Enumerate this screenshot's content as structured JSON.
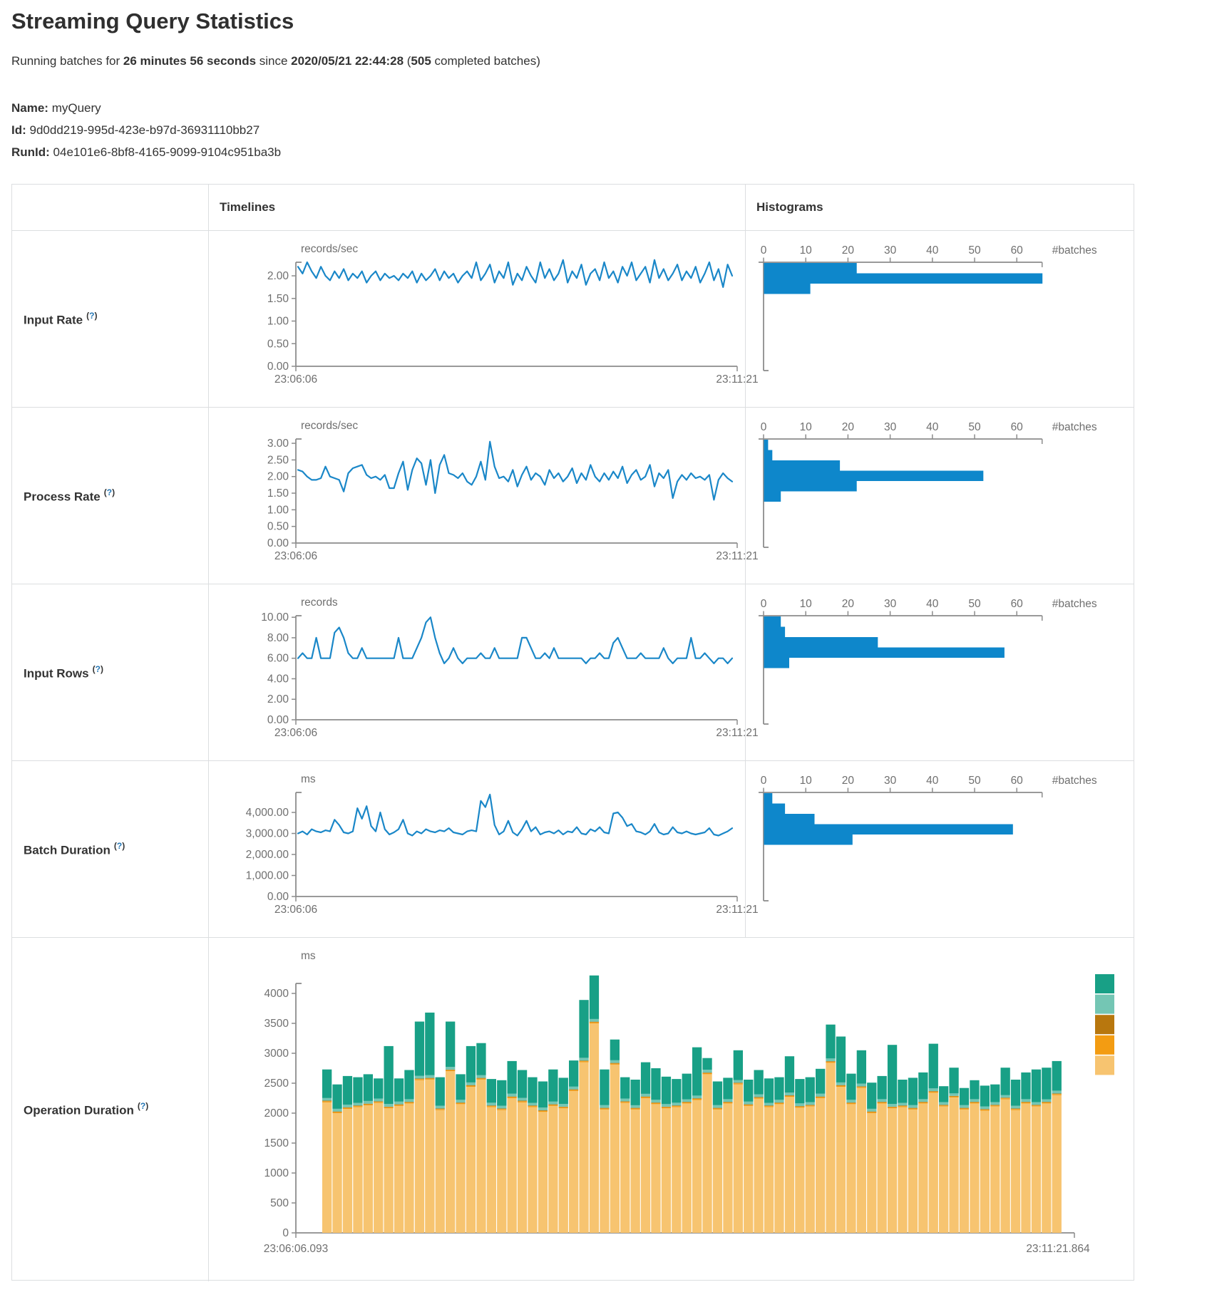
{
  "page": {
    "title": "Streaming Query Statistics"
  },
  "summary_segments": [
    {
      "text": "Running batches for ",
      "bold": false
    },
    {
      "text": "26 minutes 56 seconds",
      "bold": true
    },
    {
      "text": " since ",
      "bold": false
    },
    {
      "text": "2020/05/21 22:44:28",
      "bold": true
    },
    {
      "text": " (",
      "bold": false
    },
    {
      "text": "505",
      "bold": true
    },
    {
      "text": " completed batches)",
      "bold": false
    }
  ],
  "meta": [
    {
      "label": "Name:",
      "value": "myQuery"
    },
    {
      "label": "Id:",
      "value": "9d0dd219-995d-423e-b97d-36931110bb27"
    },
    {
      "label": "RunId:",
      "value": "04e101e6-8bf8-4165-9099-9104c951ba3b"
    }
  ],
  "table": {
    "col_headers": {
      "timelines": "Timelines",
      "histograms": "Histograms"
    },
    "help": {
      "open": "(",
      "mark": "?",
      "close": ")"
    },
    "rows": [
      {
        "label": "Input Rate",
        "timeline": "input-rate-timeline",
        "histogram": "input-rate-histogram"
      },
      {
        "label": "Process Rate",
        "timeline": "process-rate-timeline",
        "histogram": "process-rate-histogram"
      },
      {
        "label": "Input Rows",
        "timeline": "input-rows-timeline",
        "histogram": "input-rows-histogram"
      },
      {
        "label": "Batch Duration",
        "timeline": "batch-duration-timeline",
        "histogram": "batch-duration-histogram"
      }
    ],
    "operation_row": {
      "label": "Operation Duration",
      "chart": "operation-duration-stacked"
    }
  },
  "colors": {
    "line": "#1a87c8",
    "hist_bar": "#0e87cb",
    "axis": "#8c8c8c",
    "tick_text": "#6f6f6f",
    "border": "#dcdee0",
    "help": "#2577b5"
  },
  "chart_data": [
    {
      "id": "input-rate-timeline",
      "type": "line",
      "title": "Input Rate",
      "ylabel": "records/sec",
      "x_start": "23:06:06",
      "x_end": "23:11:21",
      "ylim": [
        0,
        2.3
      ],
      "y_ticks": [
        {
          "v": 2,
          "t": "2.00"
        },
        {
          "v": 1.5,
          "t": "1.50"
        },
        {
          "v": 1,
          "t": "1.00"
        },
        {
          "v": 0.5,
          "t": "0.50"
        },
        {
          "v": 0,
          "t": "0.00"
        }
      ],
      "values": [
        2.2,
        2.05,
        2.3,
        2.1,
        1.95,
        2.2,
        2.0,
        1.9,
        2.1,
        1.95,
        2.15,
        1.9,
        2.05,
        1.95,
        2.1,
        1.85,
        2.0,
        2.1,
        1.9,
        2.05,
        1.95,
        2.0,
        1.9,
        2.05,
        1.95,
        2.1,
        1.85,
        2.05,
        1.9,
        2.0,
        2.15,
        1.9,
        2.1,
        1.95,
        2.05,
        1.85,
        2.0,
        2.1,
        1.95,
        2.3,
        1.9,
        2.05,
        2.25,
        1.85,
        2.1,
        1.95,
        2.3,
        1.8,
        2.05,
        1.9,
        2.2,
        2.0,
        1.85,
        2.3,
        1.95,
        2.15,
        1.9,
        2.05,
        2.35,
        1.85,
        2.1,
        1.95,
        2.25,
        1.8,
        2.05,
        2.15,
        1.9,
        2.3,
        1.95,
        2.1,
        1.85,
        2.2,
        2.0,
        2.3,
        1.9,
        2.05,
        2.2,
        1.85,
        2.35,
        1.95,
        2.15,
        1.9,
        2.05,
        2.25,
        1.9,
        2.1,
        1.95,
        2.2,
        1.85,
        2.05,
        2.3,
        1.9,
        2.15,
        1.75,
        2.25,
        2.0
      ]
    },
    {
      "id": "input-rate-histogram",
      "type": "bar",
      "orientation": "horizontal",
      "xlabel": "#batches",
      "xlim": [
        0,
        66
      ],
      "x_ticks": [
        0,
        10,
        20,
        30,
        40,
        50,
        60
      ],
      "bin_counts": [
        22,
        66,
        11
      ]
    },
    {
      "id": "process-rate-timeline",
      "type": "line",
      "title": "Process Rate",
      "ylabel": "records/sec",
      "x_start": "23:06:06",
      "x_end": "23:11:21",
      "ylim": [
        0,
        3.13
      ],
      "y_ticks": [
        {
          "v": 3,
          "t": "3.00"
        },
        {
          "v": 2.5,
          "t": "2.50"
        },
        {
          "v": 2,
          "t": "2.00"
        },
        {
          "v": 1.5,
          "t": "1.50"
        },
        {
          "v": 1,
          "t": "1.00"
        },
        {
          "v": 0.5,
          "t": "0.50"
        },
        {
          "v": 0,
          "t": "0.00"
        }
      ],
      "values": [
        2.2,
        2.15,
        2.0,
        1.9,
        1.9,
        1.95,
        2.3,
        2.0,
        1.95,
        1.9,
        1.55,
        2.1,
        2.25,
        2.3,
        2.35,
        2.05,
        1.95,
        2.0,
        1.9,
        2.05,
        1.65,
        1.65,
        2.1,
        2.45,
        1.6,
        2.2,
        2.55,
        2.4,
        1.75,
        2.5,
        1.5,
        2.35,
        2.65,
        2.1,
        2.05,
        1.95,
        2.1,
        1.85,
        1.75,
        2.0,
        2.45,
        1.9,
        3.05,
        2.3,
        1.95,
        2.0,
        1.85,
        2.2,
        1.7,
        2.05,
        2.3,
        1.9,
        2.1,
        2.0,
        1.75,
        2.2,
        1.95,
        2.1,
        1.85,
        2.0,
        2.25,
        1.8,
        2.1,
        1.9,
        2.35,
        2.0,
        1.85,
        2.1,
        1.9,
        2.15,
        1.95,
        2.3,
        1.8,
        2.05,
        2.2,
        1.9,
        2.0,
        2.35,
        1.7,
        2.1,
        1.95,
        2.2,
        1.35,
        1.85,
        2.05,
        1.9,
        2.1,
        1.95,
        2.0,
        1.9,
        2.05,
        1.3,
        1.9,
        2.1,
        1.95,
        1.85
      ]
    },
    {
      "id": "process-rate-histogram",
      "type": "bar",
      "orientation": "horizontal",
      "xlabel": "#batches",
      "xlim": [
        0,
        66
      ],
      "x_ticks": [
        0,
        10,
        20,
        30,
        40,
        50,
        60
      ],
      "bin_counts": [
        1,
        2,
        18,
        52,
        22,
        4
      ]
    },
    {
      "id": "input-rows-timeline",
      "type": "line",
      "title": "Input Rows",
      "ylabel": "records",
      "x_start": "23:06:06",
      "x_end": "23:11:21",
      "ylim": [
        0,
        10.15
      ],
      "y_ticks": [
        {
          "v": 10,
          "t": "10.00"
        },
        {
          "v": 8,
          "t": "8.00"
        },
        {
          "v": 6,
          "t": "6.00"
        },
        {
          "v": 4,
          "t": "4.00"
        },
        {
          "v": 2,
          "t": "2.00"
        },
        {
          "v": 0,
          "t": "0.00"
        }
      ],
      "values": [
        6,
        6.5,
        6,
        6,
        8,
        6,
        6,
        6,
        8.5,
        9,
        8,
        6.5,
        6,
        6,
        7,
        6,
        6,
        6,
        6,
        6,
        6,
        6,
        8,
        6,
        6,
        6,
        7,
        8,
        9.5,
        10,
        8,
        6.5,
        5.5,
        6,
        7,
        6,
        5.5,
        6,
        6,
        6,
        6.5,
        6,
        6,
        7,
        6,
        6,
        6,
        6,
        6,
        8,
        8,
        7,
        6,
        6,
        6.5,
        6,
        7,
        6,
        6,
        6,
        6,
        6,
        6,
        5.5,
        6,
        6,
        6.5,
        6,
        6,
        7.5,
        8,
        7,
        6,
        6,
        6,
        6.5,
        6,
        6,
        6,
        6,
        7,
        6,
        5.5,
        6,
        6,
        6,
        8,
        6,
        6,
        6.5,
        6,
        5.5,
        6,
        6,
        5.5,
        6
      ]
    },
    {
      "id": "input-rows-histogram",
      "type": "bar",
      "orientation": "horizontal",
      "xlabel": "#batches",
      "xlim": [
        0,
        66
      ],
      "x_ticks": [
        0,
        10,
        20,
        30,
        40,
        50,
        60
      ],
      "bin_counts": [
        4,
        5,
        27,
        57,
        6
      ]
    },
    {
      "id": "batch-duration-timeline",
      "type": "line",
      "title": "Batch Duration",
      "ylabel": "ms",
      "x_start": "23:06:06",
      "x_end": "23:11:21",
      "ylim": [
        0,
        4950
      ],
      "y_ticks": [
        {
          "v": 4000,
          "t": "4,000.00"
        },
        {
          "v": 3000,
          "t": "3,000.00"
        },
        {
          "v": 2000,
          "t": "2,000.00"
        },
        {
          "v": 1000,
          "t": "1,000.00"
        },
        {
          "v": 0,
          "t": "0.00"
        }
      ],
      "values": [
        3000,
        3100,
        2950,
        3200,
        3100,
        3050,
        3150,
        3100,
        3650,
        3400,
        3050,
        3000,
        3100,
        4200,
        3700,
        4300,
        3350,
        3100,
        4000,
        3200,
        2950,
        3050,
        3200,
        3650,
        3000,
        2900,
        3100,
        3000,
        3200,
        3100,
        3050,
        3150,
        3100,
        3250,
        3050,
        3000,
        2950,
        3100,
        3150,
        3100,
        4550,
        4250,
        4850,
        3400,
        2950,
        3100,
        3600,
        3050,
        2900,
        3200,
        3600,
        3100,
        3300,
        2950,
        3050,
        3100,
        3000,
        3150,
        2950,
        3100,
        3050,
        3300,
        3000,
        2950,
        3200,
        3100,
        3300,
        3050,
        3000,
        3950,
        4000,
        3750,
        3350,
        3450,
        3100,
        3050,
        2950,
        3100,
        3450,
        3050,
        2950,
        3000,
        3300,
        3050,
        3000,
        3100,
        3000,
        2950,
        3000,
        3050,
        3250,
        2950,
        2900,
        3000,
        3100,
        3250
      ]
    },
    {
      "id": "batch-duration-histogram",
      "type": "bar",
      "orientation": "horizontal",
      "xlabel": "#batches",
      "xlim": [
        0,
        66
      ],
      "x_ticks": [
        0,
        10,
        20,
        30,
        40,
        50,
        60
      ],
      "bin_counts": [
        2,
        5,
        12,
        59,
        21
      ]
    },
    {
      "id": "operation-duration-stacked",
      "type": "bar",
      "stacked": true,
      "title": "Operation Duration",
      "ylabel": "ms",
      "x_start": "23:06:06.093",
      "x_end": "23:11:21.864",
      "ylim": [
        0,
        4170
      ],
      "y_ticks": [
        {
          "v": 4000,
          "t": "4000"
        },
        {
          "v": 3500,
          "t": "3500"
        },
        {
          "v": 3000,
          "t": "3000"
        },
        {
          "v": 2500,
          "t": "2500"
        },
        {
          "v": 2000,
          "t": "2000"
        },
        {
          "v": 1500,
          "t": "1500"
        },
        {
          "v": 1000,
          "t": "1000"
        },
        {
          "v": 500,
          "t": "500"
        },
        {
          "v": 0,
          "t": "0"
        }
      ],
      "series": [
        {
          "name": "light-orange",
          "color": "#f7c470",
          "values": [
            2180,
            2000,
            2070,
            2100,
            2130,
            2170,
            2080,
            2120,
            2160,
            2550,
            2560,
            2050,
            2700,
            2150,
            2440,
            2560,
            2100,
            2050,
            2250,
            2180,
            2100,
            2020,
            2120,
            2080,
            2370,
            2850,
            3500,
            2060,
            2810,
            2170,
            2060,
            2250,
            2150,
            2080,
            2100,
            2160,
            2220,
            2650,
            2060,
            2160,
            2480,
            2120,
            2240,
            2100,
            2150,
            2270,
            2090,
            2110,
            2250,
            2840,
            2440,
            2150,
            2420,
            2000,
            2160,
            2080,
            2100,
            2060,
            2160,
            2340,
            2110,
            2260,
            2060,
            2160,
            2040,
            2110,
            2230,
            2050,
            2160,
            2110,
            2160,
            2300
          ]
        },
        {
          "name": "orange",
          "color": "#f39c12",
          "values": 18
        },
        {
          "name": "dark-ochre",
          "color": "#b8770e",
          "values": 10
        },
        {
          "name": "light-teal",
          "color": "#74c6b4",
          "values": 45
        },
        {
          "name": "teal",
          "color": "#18a086",
          "values": [
            477,
            407,
            477,
            427,
            447,
            337,
            967,
            387,
            487,
            907,
            1047,
            477,
            757,
            427,
            607,
            537,
            397,
            427,
            547,
            467,
            427,
            437,
            537,
            437,
            437,
            967,
            727,
            597,
            347,
            357,
            427,
            527,
            527,
            457,
            397,
            427,
            807,
            197,
            397,
            357,
            497,
            367,
            407,
            407,
            377,
            607,
            407,
            417,
            417,
            567,
            767,
            437,
            557,
            437,
            387,
            987,
            387,
            457,
            447,
            747,
            267,
            427,
            287,
            317,
            347,
            297,
            457,
            437,
            447,
            547,
            527,
            497
          ]
        }
      ],
      "legend_swatches_top_to_bottom": [
        "#18a086",
        "#74c6b4",
        "#b8770e",
        "#f39c12",
        "#f7c470"
      ]
    }
  ]
}
